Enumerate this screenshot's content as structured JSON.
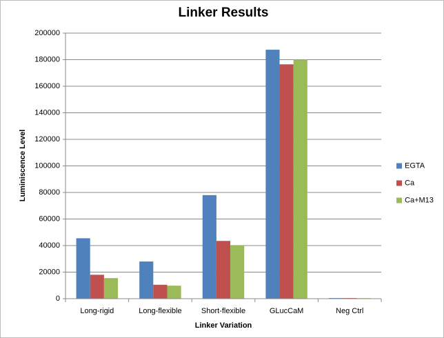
{
  "chart_data": {
    "type": "bar",
    "title": "Linker Results",
    "xlabel": "Linker Variation",
    "ylabel": "Luminiscence Level",
    "categories": [
      "Long-rigid",
      "Long-flexible",
      "Short-flexible",
      "GLucCaM",
      "Neg Ctrl"
    ],
    "series": [
      {
        "name": "EGTA",
        "color": "#4f81bd",
        "values": [
          45500,
          28000,
          78000,
          187500,
          500
        ]
      },
      {
        "name": "Ca",
        "color": "#c0504d",
        "values": [
          18000,
          10500,
          43500,
          176500,
          500
        ]
      },
      {
        "name": "Ca+M13",
        "color": "#9bbb59",
        "values": [
          15500,
          9800,
          40000,
          180000,
          400
        ]
      }
    ],
    "ylim": [
      0,
      200000
    ],
    "yticks": [
      0,
      20000,
      40000,
      60000,
      80000,
      100000,
      120000,
      140000,
      160000,
      180000,
      200000
    ],
    "grid": true,
    "legend": "right"
  }
}
